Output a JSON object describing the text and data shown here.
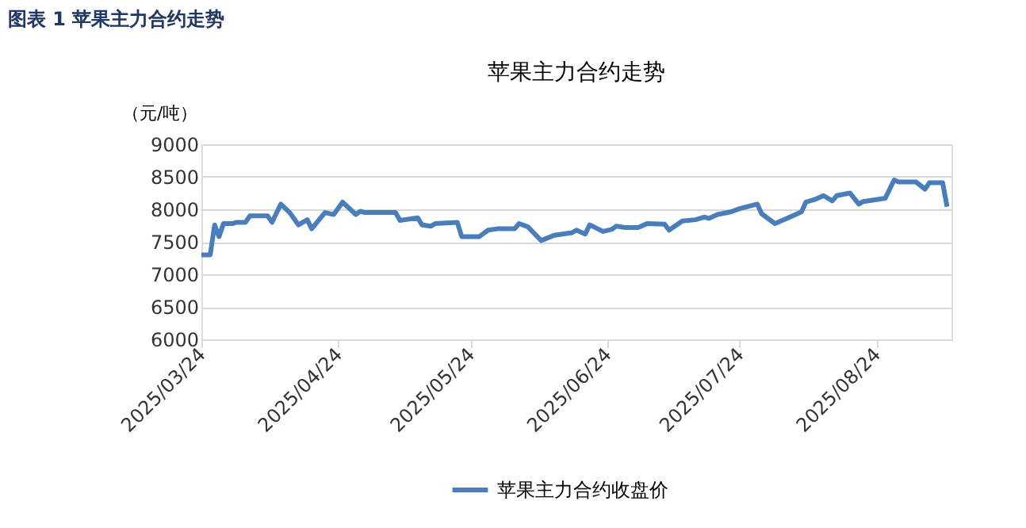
{
  "chart_data": {
    "type": "line",
    "title": "苹果主力合约走势",
    "ylabel": "（元/吨）",
    "annotations": [
      "图表 1  苹果主力合约走势"
    ],
    "x": [
      "2025-03-24",
      "2025-03-26",
      "2025-03-27",
      "2025-03-28",
      "2025-03-29",
      "2025-03-31",
      "2025-04-01",
      "2025-04-03",
      "2025-04-04",
      "2025-04-08",
      "2025-04-09",
      "2025-04-11",
      "2025-04-13",
      "2025-04-15",
      "2025-04-17",
      "2025-04-18",
      "2025-04-21",
      "2025-04-23",
      "2025-04-25",
      "2025-04-28",
      "2025-04-29",
      "2025-04-30",
      "2025-05-07",
      "2025-05-08",
      "2025-05-12",
      "2025-05-13",
      "2025-05-15",
      "2025-05-16",
      "2025-05-21",
      "2025-05-22",
      "2025-05-26",
      "2025-05-28",
      "2025-05-30",
      "2025-06-03",
      "2025-06-04",
      "2025-06-06",
      "2025-06-09",
      "2025-06-12",
      "2025-06-16",
      "2025-06-17",
      "2025-06-19",
      "2025-06-20",
      "2025-06-23",
      "2025-06-25",
      "2025-06-26",
      "2025-06-28",
      "2025-07-01",
      "2025-07-03",
      "2025-07-07",
      "2025-07-08",
      "2025-07-11",
      "2025-07-14",
      "2025-07-16",
      "2025-07-17",
      "2025-07-19",
      "2025-07-22",
      "2025-07-24",
      "2025-07-28",
      "2025-07-29",
      "2025-08-01",
      "2025-08-04",
      "2025-08-07",
      "2025-08-08",
      "2025-08-10",
      "2025-08-12",
      "2025-08-14",
      "2025-08-15",
      "2025-08-18",
      "2025-08-20",
      "2025-08-21",
      "2025-08-24",
      "2025-08-26",
      "2025-08-28",
      "2025-08-29",
      "2025-09-02",
      "2025-09-04",
      "2025-09-05",
      "2025-09-08",
      "2025-09-09"
    ],
    "series": [
      {
        "name": "苹果主力合约收盘价",
        "color": "#4a7ebb",
        "values": [
          7300,
          7300,
          7760,
          7580,
          7780,
          7780,
          7800,
          7800,
          7900,
          7900,
          7800,
          8080,
          7950,
          7760,
          7840,
          7700,
          7950,
          7920,
          8110,
          7920,
          7970,
          7950,
          7950,
          7830,
          7870,
          7760,
          7740,
          7780,
          7800,
          7580,
          7580,
          7680,
          7700,
          7700,
          7780,
          7730,
          7520,
          7600,
          7640,
          7680,
          7620,
          7760,
          7660,
          7690,
          7740,
          7720,
          7720,
          7780,
          7770,
          7680,
          7820,
          7840,
          7880,
          7860,
          7920,
          7960,
          8010,
          8080,
          7930,
          7780,
          7870,
          7960,
          8110,
          8150,
          8210,
          8130,
          8210,
          8250,
          8080,
          8120,
          8150,
          8170,
          8450,
          8420,
          8420,
          8310,
          8410,
          8410,
          8040
        ]
      }
    ],
    "xlim": [
      "2025-03-24",
      "2025-09-10"
    ],
    "xticks": [
      {
        "value": "2025-03-24",
        "label": "2025/03/24"
      },
      {
        "value": "2025-04-24",
        "label": "2025/04/24"
      },
      {
        "value": "2025-05-24",
        "label": "2025/05/24"
      },
      {
        "value": "2025-06-24",
        "label": "2025/06/24"
      },
      {
        "value": "2025-07-24",
        "label": "2025/07/24"
      },
      {
        "value": "2025-08-24",
        "label": "2025/08/24"
      }
    ],
    "ylim": [
      6000,
      9000
    ],
    "yticks": [
      6000,
      6500,
      7000,
      7500,
      8000,
      8500,
      9000
    ],
    "grid": "y",
    "legend": "bottom",
    "marker": "none",
    "line_style": "solid"
  }
}
